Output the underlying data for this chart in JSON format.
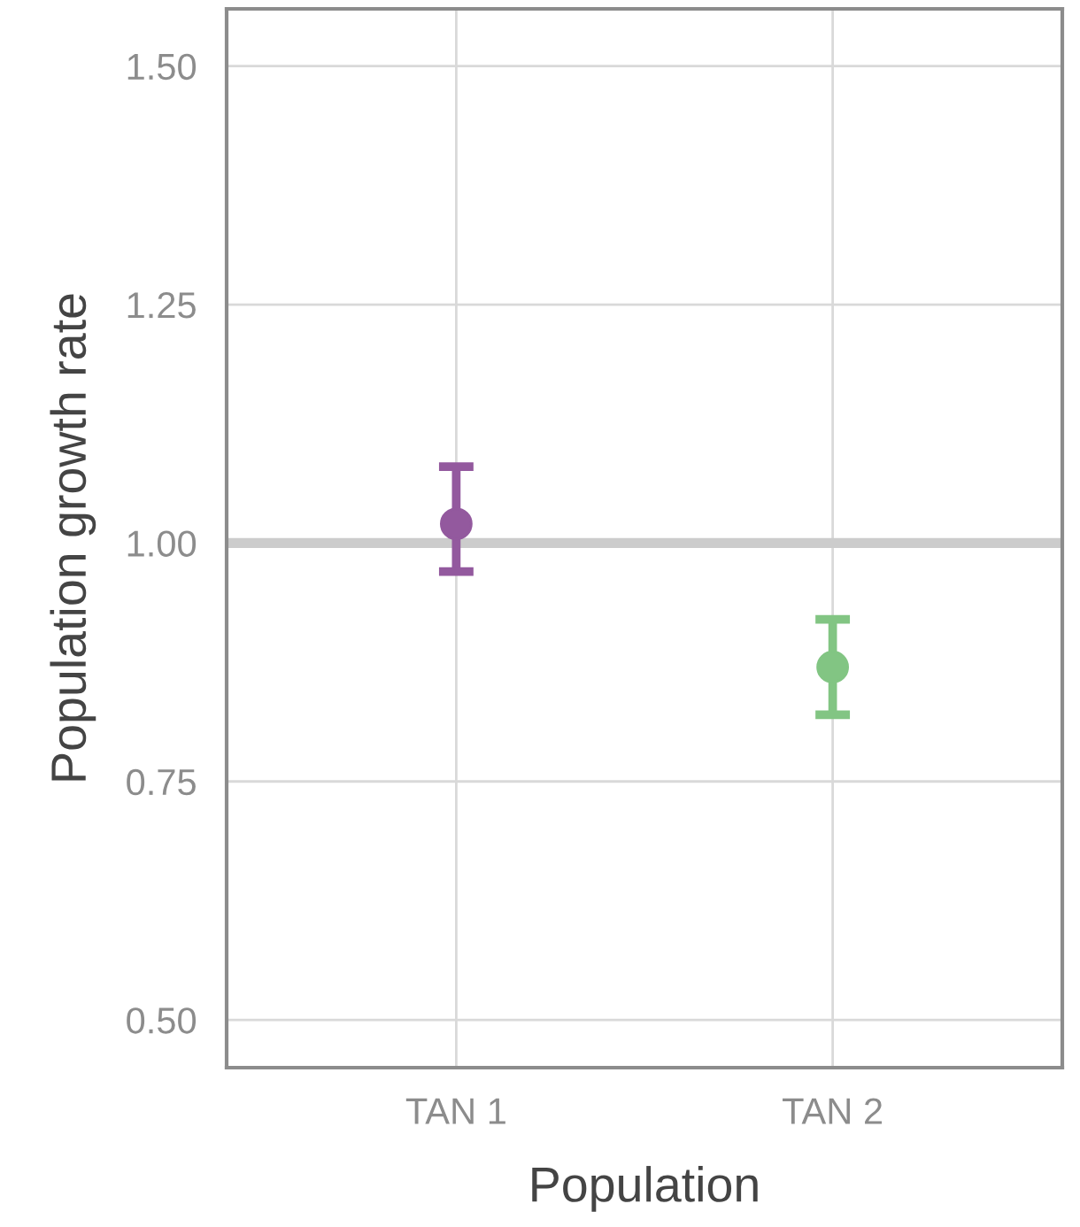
{
  "chart_data": {
    "type": "scatter",
    "xlabel": "Population",
    "ylabel": "Population growth rate",
    "categories": [
      "TAN 1",
      "TAN 2"
    ],
    "values": [
      1.02,
      0.87
    ],
    "errors": [
      [
        0.97,
        1.08
      ],
      [
        0.82,
        0.92
      ]
    ],
    "colors": [
      "#93599e",
      "#82c583"
    ],
    "marker": "circle",
    "ylim": [
      0.45,
      1.56
    ],
    "yticks": [
      {
        "value": 0.5,
        "label": "0.50"
      },
      {
        "value": 0.75,
        "label": "0.75"
      },
      {
        "value": 1.0,
        "label": "1.00"
      },
      {
        "value": 1.25,
        "label": "1.25"
      },
      {
        "value": 1.5,
        "label": "1.50"
      }
    ],
    "ref_lines": [
      {
        "axis": "y",
        "value": 1.0,
        "label": null,
        "color": "#cccccc"
      }
    ],
    "grid": true
  }
}
